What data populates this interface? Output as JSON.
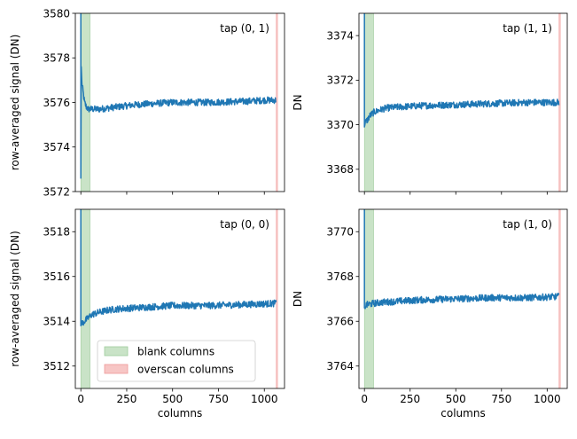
{
  "figure": {
    "legend": [
      {
        "label": "blank columns",
        "color": "#c9e3c7",
        "edge": "#9fcc9c"
      },
      {
        "label": "overscan columns",
        "color": "#f7c6c5",
        "edge": "#ee9a98"
      }
    ]
  },
  "chart_data": [
    {
      "type": "line",
      "title": "",
      "annotation": "tap (0, 1)",
      "xlabel": "",
      "ylabel": "row-averaged signal (DN)",
      "xlim": [
        -30,
        1110
      ],
      "ylim": [
        3572,
        3580
      ],
      "x_ticks": [
        0,
        250,
        500,
        750,
        1000
      ],
      "x_tick_labels_visible": false,
      "y_ticks": [
        3572,
        3574,
        3576,
        3578,
        3580
      ],
      "blank_columns": [
        0,
        50
      ],
      "overscan_columns": [
        1065,
        1072
      ],
      "series": [
        {
          "color": "#1f77b4",
          "x": [
            0,
            2,
            5,
            10,
            15,
            20,
            30,
            40,
            60,
            100,
            200,
            300,
            500,
            700,
            900,
            1000,
            1065
          ],
          "y": [
            3572.6,
            3577.6,
            3576.9,
            3576.6,
            3576.3,
            3576.0,
            3575.8,
            3575.7,
            3575.7,
            3575.7,
            3575.8,
            3575.9,
            3576.0,
            3576.0,
            3576.05,
            3576.1,
            3576.1
          ],
          "noise": 0.15
        }
      ]
    },
    {
      "type": "line",
      "title": "",
      "annotation": "tap (1, 1)",
      "xlabel": "",
      "ylabel": "DN",
      "xlim": [
        -30,
        1110
      ],
      "ylim": [
        3367,
        3375
      ],
      "x_ticks": [
        0,
        250,
        500,
        750,
        1000
      ],
      "x_tick_labels_visible": false,
      "y_ticks": [
        3368,
        3370,
        3372,
        3374
      ],
      "blank_columns": [
        0,
        50
      ],
      "overscan_columns": [
        1065,
        1072
      ],
      "series": [
        {
          "color": "#1f77b4",
          "x": [
            0,
            5,
            15,
            30,
            50,
            80,
            120,
            200,
            300,
            500,
            700,
            900,
            1065
          ],
          "y": [
            3369.9,
            3370.1,
            3370.2,
            3370.4,
            3370.55,
            3370.65,
            3370.75,
            3370.8,
            3370.85,
            3370.9,
            3370.95,
            3371.0,
            3371.0
          ],
          "noise": 0.15
        }
      ]
    },
    {
      "type": "line",
      "title": "",
      "annotation": "tap (0, 0)",
      "xlabel": "columns",
      "ylabel": "row-averaged signal (DN)",
      "xlim": [
        -30,
        1110
      ],
      "ylim": [
        3511,
        3519
      ],
      "x_ticks": [
        0,
        250,
        500,
        750,
        1000
      ],
      "x_tick_labels_visible": true,
      "y_ticks": [
        3512,
        3514,
        3516,
        3518
      ],
      "blank_columns": [
        0,
        50
      ],
      "overscan_columns": [
        1065,
        1072
      ],
      "series": [
        {
          "color": "#1f77b4",
          "x": [
            0,
            5,
            20,
            40,
            60,
            100,
            150,
            200,
            300,
            400,
            500,
            700,
            900,
            1065
          ],
          "y": [
            3513.8,
            3513.9,
            3514.0,
            3514.15,
            3514.3,
            3514.4,
            3514.5,
            3514.55,
            3514.6,
            3514.65,
            3514.7,
            3514.7,
            3514.75,
            3514.8
          ],
          "noise": 0.15
        }
      ]
    },
    {
      "type": "line",
      "title": "",
      "annotation": "tap (1, 0)",
      "xlabel": "columns",
      "ylabel": "DN",
      "xlim": [
        -30,
        1110
      ],
      "ylim": [
        3763,
        3771
      ],
      "x_ticks": [
        0,
        250,
        500,
        750,
        1000
      ],
      "x_tick_labels_visible": true,
      "y_ticks": [
        3764,
        3766,
        3768,
        3770
      ],
      "blank_columns": [
        0,
        50
      ],
      "overscan_columns": [
        1065,
        1072
      ],
      "series": [
        {
          "color": "#1f77b4",
          "x": [
            0,
            5,
            20,
            50,
            100,
            200,
            300,
            500,
            700,
            900,
            1065
          ],
          "y": [
            3766.6,
            3766.7,
            3766.75,
            3766.8,
            3766.85,
            3766.9,
            3766.95,
            3767.0,
            3767.05,
            3767.05,
            3767.1
          ],
          "noise": 0.15
        }
      ]
    }
  ]
}
